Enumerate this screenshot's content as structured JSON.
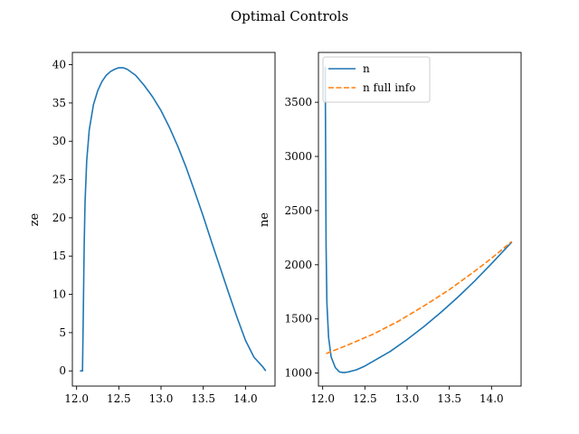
{
  "figure": {
    "title": "Optimal Controls"
  },
  "chart_data": [
    {
      "type": "line",
      "title": "",
      "xlabel": "",
      "ylabel": "ze",
      "xlim": [
        11.95,
        14.35
      ],
      "ylim": [
        -1.98,
        41.6
      ],
      "xticks": [
        12.0,
        12.5,
        13.0,
        13.5,
        14.0
      ],
      "yticks": [
        0,
        5,
        10,
        15,
        20,
        25,
        30,
        35,
        40
      ],
      "grid": false,
      "legend": null,
      "series": [
        {
          "name": "",
          "color": "#1f77b4",
          "dash": "solid",
          "x": [
            12.04,
            12.07,
            12.08,
            12.09,
            12.1,
            12.12,
            12.15,
            12.2,
            12.25,
            12.3,
            12.35,
            12.4,
            12.45,
            12.5,
            12.55,
            12.6,
            12.7,
            12.8,
            12.9,
            13.0,
            13.1,
            13.2,
            13.3,
            13.4,
            13.5,
            13.6,
            13.7,
            13.8,
            13.9,
            14.0,
            14.1,
            14.2,
            14.24
          ],
          "y": [
            0.0,
            0.0,
            8.0,
            16.5,
            22.0,
            27.5,
            31.5,
            34.8,
            36.6,
            37.8,
            38.6,
            39.1,
            39.4,
            39.6,
            39.6,
            39.4,
            38.6,
            37.3,
            35.8,
            34.0,
            31.8,
            29.3,
            26.5,
            23.4,
            20.2,
            16.8,
            13.5,
            10.2,
            7.0,
            4.0,
            1.8,
            0.6,
            0.0
          ]
        }
      ]
    },
    {
      "type": "line",
      "title": "",
      "xlabel": "",
      "ylabel": "ne",
      "xlim": [
        11.95,
        14.35
      ],
      "ylim": [
        880,
        3960
      ],
      "xticks": [
        12.0,
        12.5,
        13.0,
        13.5,
        14.0
      ],
      "yticks": [
        1000,
        1500,
        2000,
        2500,
        3000,
        3500
      ],
      "grid": false,
      "legend": "top-left",
      "series": [
        {
          "name": "n",
          "color": "#1f77b4",
          "dash": "solid",
          "x": [
            12.03,
            12.035,
            12.04,
            12.05,
            12.07,
            12.1,
            12.15,
            12.2,
            12.25,
            12.3,
            12.4,
            12.5,
            12.6,
            12.8,
            13.0,
            13.2,
            13.4,
            13.6,
            13.8,
            14.0,
            14.24
          ],
          "y": [
            3830,
            3100,
            2200,
            1650,
            1330,
            1150,
            1050,
            1010,
            1005,
            1010,
            1030,
            1065,
            1110,
            1200,
            1310,
            1430,
            1560,
            1700,
            1850,
            2010,
            2210
          ]
        },
        {
          "name": "n full info",
          "color": "#ff7f0e",
          "dash": "dashed",
          "x": [
            12.04,
            12.3,
            12.6,
            12.9,
            13.2,
            13.5,
            13.8,
            14.0,
            14.24
          ],
          "y": [
            1180,
            1260,
            1360,
            1480,
            1620,
            1770,
            1940,
            2060,
            2215
          ]
        }
      ]
    }
  ]
}
